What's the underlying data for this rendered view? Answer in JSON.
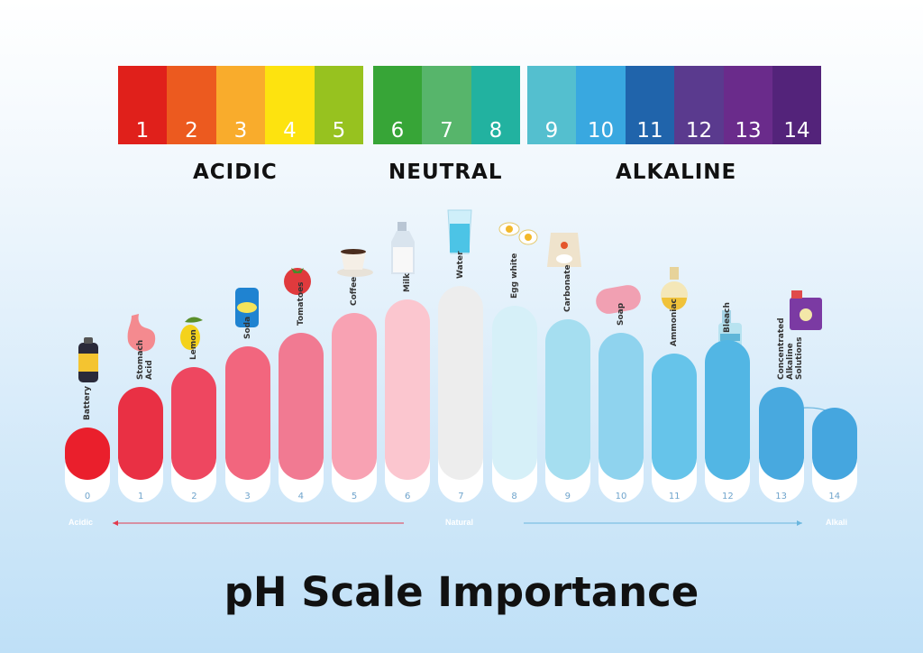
{
  "scale": {
    "cells": [
      {
        "label": "1",
        "color": "#e0201b"
      },
      {
        "label": "2",
        "color": "#ec5a1f"
      },
      {
        "label": "3",
        "color": "#f9ac2c"
      },
      {
        "label": "4",
        "color": "#fde30f"
      },
      {
        "label": "5",
        "color": "#97c21f"
      },
      {
        "label": "6",
        "color": "#37a537"
      },
      {
        "label": "7",
        "color": "#57b56b"
      },
      {
        "label": "8",
        "color": "#22b2a0"
      },
      {
        "label": "9",
        "color": "#54bfcf"
      },
      {
        "label": "10",
        "color": "#39a8e0"
      },
      {
        "label": "11",
        "color": "#2064ab"
      },
      {
        "label": "12",
        "color": "#5a3a8e"
      },
      {
        "label": "13",
        "color": "#6a2b8b"
      },
      {
        "label": "14",
        "color": "#53237a"
      }
    ],
    "groups": {
      "acidic": "ACIDIC",
      "neutral": "NEUTRAL",
      "alkaline": "ALKALINE"
    }
  },
  "items": [
    {
      "ph": "0",
      "name": "Battery",
      "level": 0.05,
      "color": "#ea1f2c",
      "icon": "battery-icon"
    },
    {
      "ph": "1",
      "name": "Stomach Acid",
      "level": 0.35,
      "color": "#e93044",
      "icon": "stomach-icon"
    },
    {
      "ph": "2",
      "name": "Lemon",
      "level": 0.5,
      "color": "#ee4760",
      "icon": "lemon-icon"
    },
    {
      "ph": "3",
      "name": "Soda",
      "level": 0.65,
      "color": "#f2667e",
      "icon": "soda-can-icon"
    },
    {
      "ph": "4",
      "name": "Tomatoes",
      "level": 0.75,
      "color": "#f17a92",
      "icon": "tomato-icon"
    },
    {
      "ph": "5",
      "name": "Coffee",
      "level": 0.9,
      "color": "#f8a2b3",
      "icon": "coffee-cup-icon"
    },
    {
      "ph": "6",
      "name": "Milk",
      "level": 1.0,
      "color": "#fbc6cf",
      "icon": "milk-bottle-icon"
    },
    {
      "ph": "7",
      "name": "Water",
      "level": 1.1,
      "color": "#ededed",
      "icon": "water-glass-icon"
    },
    {
      "ph": "8",
      "name": "Egg white",
      "level": 0.95,
      "color": "#d6f0f8",
      "icon": "egg-icon"
    },
    {
      "ph": "9",
      "name": "Carbonate",
      "level": 0.85,
      "color": "#a5def0",
      "icon": "carbonate-bag-icon"
    },
    {
      "ph": "10",
      "name": "Soap",
      "level": 0.75,
      "color": "#8fd3ee",
      "icon": "soap-icon"
    },
    {
      "ph": "11",
      "name": "Ammoniac",
      "level": 0.6,
      "color": "#66c4ea",
      "icon": "flask-icon"
    },
    {
      "ph": "12",
      "name": "Bleach",
      "level": 0.7,
      "color": "#52b6e4",
      "icon": "bleach-bottle-icon"
    },
    {
      "ph": "13",
      "name": "Concentrated Alkaline Solutions",
      "level": 0.35,
      "color": "#48a9df",
      "icon": "alkaline-container-icon"
    },
    {
      "ph": "14",
      "name": "",
      "level": 0.2,
      "color": "#45a6df",
      "icon": ""
    }
  ],
  "axis": {
    "left": "Acidic",
    "middle": "Natural",
    "right": "Alkali"
  },
  "title": "pH Scale Importance"
}
